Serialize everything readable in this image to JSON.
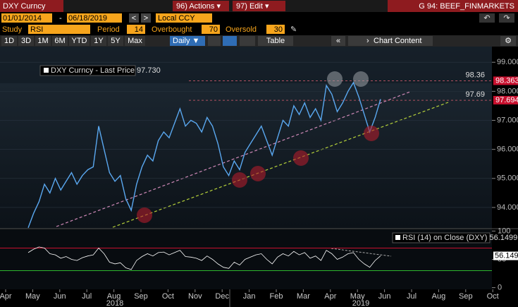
{
  "header": {
    "security": "DXY Curncy",
    "actions": "96) Actions ▾",
    "edit": "97) Edit ▾",
    "page": "G 94: BEEF_FINMARKETS"
  },
  "range": {
    "start": "01/01/2014",
    "dash": "-",
    "end": "06/18/2019",
    "currency": "Local CCY"
  },
  "study": {
    "label": "Study",
    "name": "RSI",
    "period_label": "Period",
    "period": 14,
    "overbought_label": "Overbought",
    "overbought": 70,
    "oversold_label": "Oversold",
    "oversold": 30
  },
  "toolbar": {
    "buttons": [
      "1D",
      "3D",
      "1M",
      "6M",
      "YTD",
      "1Y",
      "5Y",
      "Max"
    ],
    "frequency": "Daily ▼",
    "table": "Table",
    "content": "Chart Content"
  },
  "chart_data": [
    {
      "type": "line",
      "legend_label": "DXY Curncy - Last Price 97.730",
      "series": [
        {
          "name": "DXY Curncy",
          "color": "#5aa8f0",
          "values": [
            93.3,
            93.8,
            94.2,
            94.8,
            94.5,
            95.0,
            94.6,
            94.9,
            95.2,
            94.8,
            95.1,
            95.3,
            95.4,
            96.8,
            96.0,
            95.2,
            94.9,
            95.1,
            94.3,
            93.9,
            94.8,
            95.4,
            95.8,
            95.6,
            96.3,
            96.6,
            96.4,
            96.9,
            97.4,
            96.8,
            97.0,
            96.9,
            96.6,
            97.1,
            96.8,
            96.2,
            95.4,
            95.1,
            95.6,
            95.3,
            95.9,
            96.2,
            96.5,
            96.8,
            96.3,
            95.8,
            96.4,
            97.0,
            96.8,
            97.5,
            97.2,
            97.6,
            97.1,
            97.4,
            97.0,
            98.2,
            97.9,
            97.3,
            97.6,
            98.0,
            98.3,
            97.8,
            97.2,
            96.6,
            97.1,
            97.73
          ]
        }
      ],
      "ylim": [
        93.27,
        99.54
      ],
      "yticks": [
        {
          "value": 94,
          "label": "94.000"
        },
        {
          "value": 95,
          "label": "95.000"
        },
        {
          "value": 96,
          "label": "96.000"
        },
        {
          "value": 97,
          "label": "97.000"
        },
        {
          "value": 98,
          "label": "98.000"
        },
        {
          "value": 99,
          "label": "99.000"
        }
      ],
      "reference_lines": [
        {
          "value": 98.36,
          "tag": 98.363
        },
        {
          "value": 97.69,
          "tag": 97.694
        }
      ]
    },
    {
      "type": "line",
      "legend_label": "RSI (14) on Close (DXY) 56.1499",
      "series": [
        {
          "name": "RSI (14)",
          "color": "#ffffff",
          "values": [
            62,
            68,
            72,
            70,
            60,
            58,
            52,
            55,
            50,
            48,
            53,
            56,
            58,
            70,
            60,
            45,
            42,
            44,
            35,
            32,
            48,
            55,
            60,
            56,
            62,
            63,
            58,
            62,
            66,
            55,
            54,
            52,
            48,
            56,
            50,
            42,
            36,
            34,
            45,
            40,
            50,
            54,
            58,
            60,
            50,
            42,
            54,
            60,
            56,
            64,
            58,
            62,
            52,
            56,
            48,
            66,
            60,
            50,
            54,
            60,
            62,
            50,
            42,
            36,
            48,
            56.1499
          ]
        }
      ],
      "ylim": [
        -3,
        103
      ],
      "yticks": [
        0,
        50,
        100
      ],
      "x_labels": [
        "Apr",
        "May",
        "Jun",
        "Jul",
        "Aug",
        "Sep",
        "Oct",
        "Nov",
        "Dec",
        "Jan",
        "Feb",
        "Mar",
        "Apr",
        "May",
        "Jun",
        "Jul",
        "Aug",
        "Sep",
        "Oct"
      ],
      "years": [
        "2018",
        "2019"
      ]
    }
  ]
}
